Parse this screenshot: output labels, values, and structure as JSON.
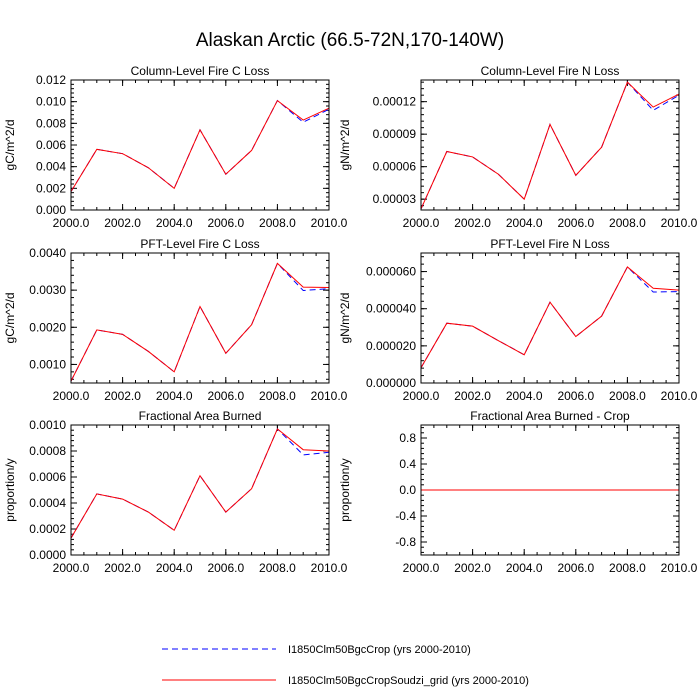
{
  "title": "Alaskan Arctic (66.5-72N,170-140W)",
  "legend": {
    "items": [
      {
        "label": "I1850Clm50BgcCrop (yrs 2000-2010)",
        "color": "#0000ff",
        "dash": "dashed"
      },
      {
        "label": "I1850Clm50BgcCropSoudzi_grid (yrs 2000-2010)",
        "color": "#ff0000",
        "dash": "solid"
      }
    ]
  },
  "chart_data": [
    {
      "type": "line",
      "title": "Column-Level Fire C Loss",
      "ylabel": "gC/m^2/d",
      "xlim": [
        2000,
        2010
      ],
      "ylim": [
        0,
        0.012
      ],
      "xticks": [
        2000,
        2002,
        2004,
        2006,
        2008,
        2010
      ],
      "xtick_labels": [
        "2000.0",
        "2002.0",
        "2004.0",
        "2006.0",
        "2008.0",
        "2010.0"
      ],
      "yticks": [
        0,
        0.002,
        0.004,
        0.006,
        0.008,
        0.01,
        0.012
      ],
      "ytick_labels": [
        "0.000",
        "0.002",
        "0.004",
        "0.006",
        "0.008",
        "0.010",
        "0.012"
      ],
      "x": [
        2000,
        2001,
        2002,
        2003,
        2004,
        2005,
        2006,
        2007,
        2008,
        2009,
        2010
      ],
      "series": [
        {
          "name": "I1850Clm50BgcCrop (yrs 2000-2010)",
          "color": "#0000ff",
          "dash": "dashed",
          "values": [
            0.0017,
            0.0056,
            0.0052,
            0.0039,
            0.002,
            0.0074,
            0.0033,
            0.0055,
            0.0101,
            0.0081,
            0.0093
          ]
        },
        {
          "name": "I1850Clm50BgcCropSoudzi_grid (yrs 2000-2010)",
          "color": "#ff0000",
          "dash": "solid",
          "values": [
            0.0017,
            0.0056,
            0.0052,
            0.0039,
            0.002,
            0.0074,
            0.0033,
            0.0055,
            0.0101,
            0.0083,
            0.0094
          ]
        }
      ]
    },
    {
      "type": "line",
      "title": "Column-Level Fire N Loss",
      "ylabel": "gN/m^2/d",
      "xlim": [
        2000,
        2010
      ],
      "ylim": [
        2e-05,
        0.00014
      ],
      "xticks": [
        2000,
        2002,
        2004,
        2006,
        2008,
        2010
      ],
      "xtick_labels": [
        "2000.0",
        "2002.0",
        "2004.0",
        "2006.0",
        "2008.0",
        "2010.0"
      ],
      "yticks": [
        3e-05,
        6e-05,
        9e-05,
        0.00012
      ],
      "ytick_labels": [
        "0.00003",
        "0.00006",
        "0.00009",
        "0.00012"
      ],
      "x": [
        2000,
        2001,
        2002,
        2003,
        2004,
        2005,
        2006,
        2007,
        2008,
        2009,
        2010
      ],
      "series": [
        {
          "name": "I1850Clm50BgcCrop (yrs 2000-2010)",
          "color": "#0000ff",
          "dash": "dashed",
          "values": [
            2.1e-05,
            7.4e-05,
            6.9e-05,
            5.3e-05,
            3e-05,
            9.9e-05,
            5.2e-05,
            7.8e-05,
            0.000138,
            0.000112,
            0.000126
          ]
        },
        {
          "name": "I1850Clm50BgcCropSoudzi_grid (yrs 2000-2010)",
          "color": "#ff0000",
          "dash": "solid",
          "values": [
            2.1e-05,
            7.4e-05,
            6.9e-05,
            5.3e-05,
            3e-05,
            9.9e-05,
            5.2e-05,
            7.8e-05,
            0.000138,
            0.000115,
            0.000127
          ]
        }
      ]
    },
    {
      "type": "line",
      "title": "PFT-Level Fire C Loss",
      "ylabel": "gC/m^2/d",
      "xlim": [
        2000,
        2010
      ],
      "ylim": [
        0.0005,
        0.004
      ],
      "xticks": [
        2000,
        2002,
        2004,
        2006,
        2008,
        2010
      ],
      "xtick_labels": [
        "2000.0",
        "2002.0",
        "2004.0",
        "2006.0",
        "2008.0",
        "2010.0"
      ],
      "yticks": [
        0.001,
        0.002,
        0.003,
        0.004
      ],
      "ytick_labels": [
        "0.0010",
        "0.0020",
        "0.0030",
        "0.0040"
      ],
      "x": [
        2000,
        2001,
        2002,
        2003,
        2004,
        2005,
        2006,
        2007,
        2008,
        2009,
        2010
      ],
      "series": [
        {
          "name": "I1850Clm50BgcCrop (yrs 2000-2010)",
          "color": "#0000ff",
          "dash": "dashed",
          "values": [
            0.00055,
            0.00193,
            0.00181,
            0.00135,
            0.0008,
            0.00256,
            0.0013,
            0.00207,
            0.00372,
            0.00299,
            0.00304
          ]
        },
        {
          "name": "I1850Clm50BgcCropSoudzi_grid (yrs 2000-2010)",
          "color": "#ff0000",
          "dash": "solid",
          "values": [
            0.00055,
            0.00193,
            0.00181,
            0.00135,
            0.0008,
            0.00256,
            0.0013,
            0.00207,
            0.00372,
            0.00308,
            0.00307
          ]
        }
      ]
    },
    {
      "type": "line",
      "title": "PFT-Level Fire N Loss",
      "ylabel": "gN/m^2/d",
      "xlim": [
        2000,
        2010
      ],
      "ylim": [
        0,
        7e-05
      ],
      "xticks": [
        2000,
        2002,
        2004,
        2006,
        2008,
        2010
      ],
      "xtick_labels": [
        "2000.0",
        "2002.0",
        "2004.0",
        "2006.0",
        "2008.0",
        "2010.0"
      ],
      "yticks": [
        0,
        2e-05,
        4e-05,
        6e-05
      ],
      "ytick_labels": [
        "0.000000",
        "0.000020",
        "0.000040",
        "0.000060"
      ],
      "x": [
        2000,
        2001,
        2002,
        2003,
        2004,
        2005,
        2006,
        2007,
        2008,
        2009,
        2010
      ],
      "series": [
        {
          "name": "I1850Clm50BgcCrop (yrs 2000-2010)",
          "color": "#0000ff",
          "dash": "dashed",
          "values": [
            8.2e-06,
            3.22e-05,
            3.06e-05,
            2.28e-05,
            1.52e-05,
            4.35e-05,
            2.5e-05,
            3.6e-05,
            6.25e-05,
            4.9e-05,
            4.92e-05
          ]
        },
        {
          "name": "I1850Clm50BgcCropSoudzi_grid (yrs 2000-2010)",
          "color": "#ff0000",
          "dash": "solid",
          "values": [
            8.2e-06,
            3.22e-05,
            3.06e-05,
            2.28e-05,
            1.52e-05,
            4.35e-05,
            2.5e-05,
            3.6e-05,
            6.25e-05,
            5.1e-05,
            5e-05
          ]
        }
      ]
    },
    {
      "type": "line",
      "title": "Fractional Area Burned",
      "ylabel": "proportion/y",
      "xlim": [
        2000,
        2010
      ],
      "ylim": [
        0,
        0.001
      ],
      "xticks": [
        2000,
        2002,
        2004,
        2006,
        2008,
        2010
      ],
      "xtick_labels": [
        "2000.0",
        "2002.0",
        "2004.0",
        "2006.0",
        "2008.0",
        "2010.0"
      ],
      "yticks": [
        0,
        0.0002,
        0.0004,
        0.0006,
        0.0008,
        0.001
      ],
      "ytick_labels": [
        "0.0000",
        "0.0002",
        "0.0004",
        "0.0006",
        "0.0008",
        "0.0010"
      ],
      "x": [
        2000,
        2001,
        2002,
        2003,
        2004,
        2005,
        2006,
        2007,
        2008,
        2009,
        2010
      ],
      "series": [
        {
          "name": "I1850Clm50BgcCrop (yrs 2000-2010)",
          "color": "#0000ff",
          "dash": "dashed",
          "values": [
            0.00013,
            0.00047,
            0.00043,
            0.00033,
            0.00019,
            0.00061,
            0.00033,
            0.00051,
            0.00097,
            0.00077,
            0.00079
          ]
        },
        {
          "name": "I1850Clm50BgcCropSoudzi_grid (yrs 2000-2010)",
          "color": "#ff0000",
          "dash": "solid",
          "values": [
            0.00013,
            0.00047,
            0.00043,
            0.00033,
            0.00019,
            0.00061,
            0.00033,
            0.00051,
            0.00097,
            0.00081,
            0.0008
          ]
        }
      ]
    },
    {
      "type": "line",
      "title": "Fractional Area Burned - Crop",
      "ylabel": "proportion/y",
      "xlim": [
        2000,
        2010
      ],
      "ylim": [
        -1,
        1
      ],
      "xticks": [
        2000,
        2002,
        2004,
        2006,
        2008,
        2010
      ],
      "xtick_labels": [
        "2000.0",
        "2002.0",
        "2004.0",
        "2006.0",
        "2008.0",
        "2010.0"
      ],
      "yticks": [
        -0.8,
        -0.4,
        0,
        0.4,
        0.8
      ],
      "ytick_labels": [
        "-0.8",
        "-0.4",
        "0.0",
        "0.4",
        "0.8"
      ],
      "x": [
        2000,
        2001,
        2002,
        2003,
        2004,
        2005,
        2006,
        2007,
        2008,
        2009,
        2010
      ],
      "series": [
        {
          "name": "I1850Clm50BgcCrop (yrs 2000-2010)",
          "color": "#0000ff",
          "dash": "dashed",
          "values": [
            0,
            0,
            0,
            0,
            0,
            0,
            0,
            0,
            0,
            0,
            0
          ]
        },
        {
          "name": "I1850Clm50BgcCropSoudzi_grid (yrs 2000-2010)",
          "color": "#ff0000",
          "dash": "solid",
          "values": [
            0,
            0,
            0,
            0,
            0,
            0,
            0,
            0,
            0,
            0,
            0
          ]
        }
      ]
    }
  ]
}
